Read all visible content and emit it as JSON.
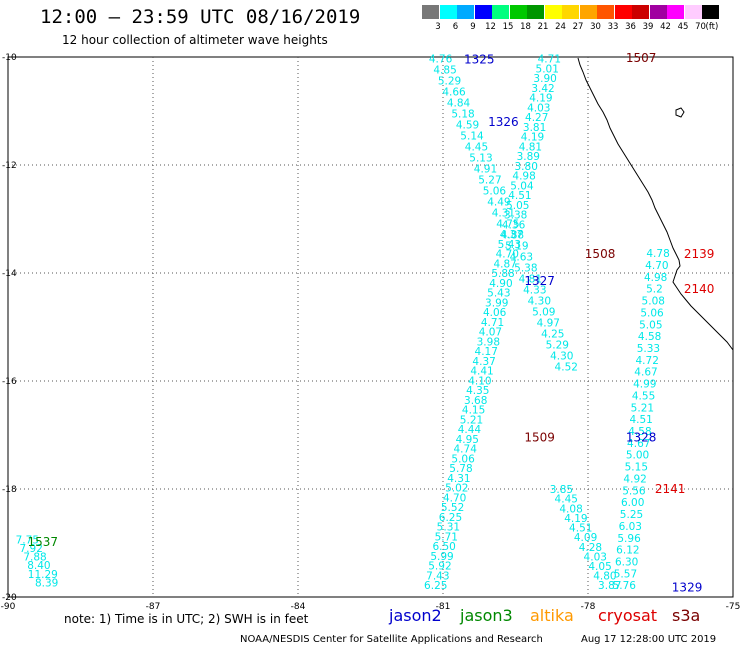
{
  "header": {
    "title": "12:00 – 23:59 UTC 08/16/2019",
    "subtitle": "12 hour collection of altimeter wave heights"
  },
  "legend": {
    "unit_label": "(ft)",
    "items": [
      {
        "label": "3",
        "color": "#787878"
      },
      {
        "label": "6",
        "color": "#00ffff"
      },
      {
        "label": "9",
        "color": "#00aaff"
      },
      {
        "label": "12",
        "color": "#0000ff"
      },
      {
        "label": "15",
        "color": "#00ff7f"
      },
      {
        "label": "18",
        "color": "#00c800"
      },
      {
        "label": "21",
        "color": "#009600"
      },
      {
        "label": "24",
        "color": "#ffff00"
      },
      {
        "label": "27",
        "color": "#ffd700"
      },
      {
        "label": "30",
        "color": "#ffa500"
      },
      {
        "label": "33",
        "color": "#ff5500"
      },
      {
        "label": "36",
        "color": "#ff0000"
      },
      {
        "label": "39",
        "color": "#cc0000"
      },
      {
        "label": "42",
        "color": "#a000a0"
      },
      {
        "label": "45",
        "color": "#ff00ff"
      },
      {
        "label": "70",
        "color": "#ffccff"
      },
      {
        "label": "",
        "color": "#000000"
      }
    ]
  },
  "axes": {
    "lon_min": -90,
    "lon_max": -75,
    "lat_min": -20,
    "lat_max": -10,
    "lon_ticks": [
      -90,
      -87,
      -84,
      -81,
      -78,
      -75
    ],
    "lon_labels": [
      "-90",
      "-87",
      "-84",
      "-81",
      "-78",
      "-75"
    ],
    "lat_ticks": [
      -10,
      -12,
      -14,
      -16,
      -18,
      -20
    ],
    "lat_labels": [
      "-10",
      "-12",
      "-14",
      "-16",
      "-18",
      "-20"
    ]
  },
  "colors": {
    "wave_value": "#00e8e8",
    "jason2": "#0000cc",
    "jason3": "#008800",
    "altika": "#ff9900",
    "cryosat": "#dd0000",
    "s3a": "#7a0000"
  },
  "passes": [
    {
      "id": "1325",
      "sat": "jason2",
      "lon": -80.25,
      "lat": -10.05
    },
    {
      "id": "1326",
      "sat": "jason2",
      "lon": -79.75,
      "lat": -11.2
    },
    {
      "id": "1327",
      "sat": "jason2",
      "lon": -79.0,
      "lat": -14.15
    },
    {
      "id": "1328",
      "sat": "jason2",
      "lon": -76.9,
      "lat": -17.05
    },
    {
      "id": "1329",
      "sat": "jason2",
      "lon": -75.95,
      "lat": -19.82
    },
    {
      "id": "1507",
      "sat": "s3a",
      "lon": -76.9,
      "lat": -10.02
    },
    {
      "id": "1508",
      "sat": "s3a",
      "lon": -77.75,
      "lat": -13.65
    },
    {
      "id": "1509",
      "sat": "s3a",
      "lon": -79.0,
      "lat": -17.05
    },
    {
      "id": "2139",
      "sat": "cryosat",
      "lon": -75.7,
      "lat": -13.65
    },
    {
      "id": "2140",
      "sat": "cryosat",
      "lon": -75.7,
      "lat": -14.3
    },
    {
      "id": "2141",
      "sat": "cryosat",
      "lon": -76.3,
      "lat": -18.0
    },
    {
      "id": "1537",
      "sat": "jason3",
      "lon": -89.28,
      "lat": -18.98
    }
  ],
  "tracks": [
    {
      "lon_start": -81.05,
      "lon_end": -78.45,
      "lat_start": -10.05,
      "lat_end": -15.75,
      "values": [
        "4.76",
        "4.85",
        "5.29",
        "4.66",
        "4.84",
        "5.18",
        "4.59",
        "5.14",
        "4.45",
        "5.13",
        "4.91",
        "5.27",
        "5.06",
        "4.49",
        "4.31",
        "4.75",
        "4.88",
        "5.19",
        "4.63",
        "5.38",
        "4.81",
        "4.33",
        "4.30",
        "5.09",
        "4.97",
        "4.25",
        "5.29",
        "4.30",
        "4.52"
      ]
    },
    {
      "lon_start": -78.8,
      "lon_end": -81.15,
      "lat_start": -10.05,
      "lat_end": -19.8,
      "values": [
        "4.71",
        "5.01",
        "3.90",
        "3.42",
        "4.19",
        "4.03",
        "4.27",
        "3.81",
        "4.19",
        "4.81",
        "3.89",
        "3.80",
        "4.98",
        "5.04",
        "4.51",
        "5.05",
        "3.38",
        "4.36",
        "4.37",
        "5.43",
        "4.70",
        "4.87",
        "5.88",
        "4.90",
        "5.43",
        "3.99",
        "4.06",
        "4.71",
        "4.07",
        "3.98",
        "4.17",
        "4.37",
        "4.41",
        "4.10",
        "4.35",
        "3.68",
        "4.15",
        "5.21",
        "4.44",
        "4.95",
        "4.74",
        "5.06",
        "5.78",
        "4.31",
        "5.02",
        "4.70",
        "5.52",
        "6.25",
        "5.31",
        "5.71",
        "6.50",
        "5.99",
        "5.92",
        "7.43",
        "6.25"
      ]
    },
    {
      "lon_start": -78.55,
      "lon_end": -77.55,
      "lat_start": -18.02,
      "lat_end": -19.8,
      "values": [
        "3.85",
        "4.45",
        "4.08",
        "4.19",
        "4.51",
        "4.09",
        "4.28",
        "4.03",
        "4.05",
        "4.80",
        "3.87"
      ]
    },
    {
      "lon_start": -76.55,
      "lon_end": -77.25,
      "lat_start": -13.65,
      "lat_end": -19.8,
      "values": [
        "4.78",
        "4.70",
        "4.98",
        "5.2",
        "5.08",
        "5.06",
        "5.05",
        "4.58",
        "5.33",
        "4.72",
        "4.67",
        "4.99",
        "4.55",
        "5.21",
        "4.51",
        "4.58",
        "4.67",
        "5.00",
        "5.15",
        "4.92",
        "5.56",
        "6.00",
        "5.25",
        "6.03",
        "5.96",
        "6.12",
        "6.30",
        "5.57",
        "5.76"
      ]
    },
    {
      "lon_start": -89.6,
      "lon_end": -89.2,
      "lat_start": -18.95,
      "lat_end": -19.75,
      "values": [
        "7.75",
        "7.92",
        "7.88",
        "8.40",
        "11.29",
        "8.39"
      ]
    }
  ],
  "footer": {
    "note": "note:  1) Time is in UTC;  2) SWH is in feet",
    "sat_labels": [
      {
        "name": "jason2",
        "left": 389
      },
      {
        "name": "jason3",
        "left": 460
      },
      {
        "name": "altika",
        "left": 530
      },
      {
        "name": "cryosat",
        "left": 598
      },
      {
        "name": "s3a",
        "left": 672
      }
    ],
    "credit": "NOAA/NESDIS Center for Satellite Applications and Research",
    "timestamp": "Aug 17 12:28:00 UTC 2019"
  }
}
